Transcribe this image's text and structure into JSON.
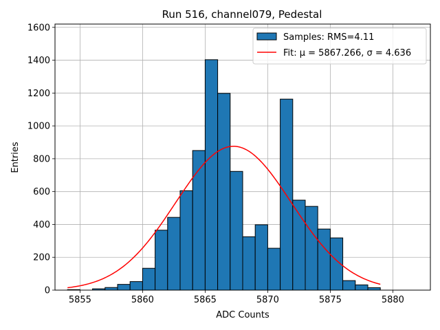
{
  "chart_data": {
    "type": "bar",
    "title": "Run 516, channel079, Pedestal",
    "xlabel": "ADC Counts",
    "ylabel": "Entries",
    "xlim": [
      5853,
      5883
    ],
    "ylim": [
      0,
      1620
    ],
    "xticks": [
      5855,
      5860,
      5865,
      5870,
      5875,
      5880
    ],
    "yticks": [
      0,
      200,
      400,
      600,
      800,
      1000,
      1200,
      1400,
      1600
    ],
    "grid": true,
    "legend_position": "top-right",
    "histogram": {
      "name": "Samples: RMS=4.11",
      "color": "#1f77b4",
      "edgecolor": "#000000",
      "bins": [
        {
          "x0": 5854.0,
          "x1": 5855.0,
          "count": 3
        },
        {
          "x0": 5856.0,
          "x1": 5857.0,
          "count": 8
        },
        {
          "x0": 5857.0,
          "x1": 5858.0,
          "count": 16
        },
        {
          "x0": 5858.0,
          "x1": 5859.0,
          "count": 35
        },
        {
          "x0": 5859.0,
          "x1": 5860.0,
          "count": 52
        },
        {
          "x0": 5860.0,
          "x1": 5861.0,
          "count": 133
        },
        {
          "x0": 5861.0,
          "x1": 5862.0,
          "count": 365
        },
        {
          "x0": 5862.0,
          "x1": 5863.0,
          "count": 443
        },
        {
          "x0": 5863.0,
          "x1": 5864.0,
          "count": 605
        },
        {
          "x0": 5864.0,
          "x1": 5865.0,
          "count": 850
        },
        {
          "x0": 5865.0,
          "x1": 5866.0,
          "count": 1403
        },
        {
          "x0": 5866.0,
          "x1": 5867.0,
          "count": 1198
        },
        {
          "x0": 5867.0,
          "x1": 5868.0,
          "count": 723
        },
        {
          "x0": 5868.0,
          "x1": 5869.0,
          "count": 325
        },
        {
          "x0": 5869.0,
          "x1": 5870.0,
          "count": 398
        },
        {
          "x0": 5870.0,
          "x1": 5871.0,
          "count": 255
        },
        {
          "x0": 5871.0,
          "x1": 5872.0,
          "count": 1163
        },
        {
          "x0": 5872.0,
          "x1": 5873.0,
          "count": 548
        },
        {
          "x0": 5873.0,
          "x1": 5874.0,
          "count": 510
        },
        {
          "x0": 5874.0,
          "x1": 5875.0,
          "count": 372
        },
        {
          "x0": 5875.0,
          "x1": 5876.0,
          "count": 318
        },
        {
          "x0": 5876.0,
          "x1": 5877.0,
          "count": 58
        },
        {
          "x0": 5877.0,
          "x1": 5878.0,
          "count": 32
        },
        {
          "x0": 5878.0,
          "x1": 5879.0,
          "count": 15
        }
      ]
    },
    "fit": {
      "type": "gaussian",
      "label": "Fit: μ = 5867.266, σ = 4.636",
      "color": "#ff0000",
      "mu": 5867.266,
      "sigma": 4.636,
      "amplitude": 876,
      "x_range": [
        5854.0,
        5879.0
      ]
    }
  }
}
